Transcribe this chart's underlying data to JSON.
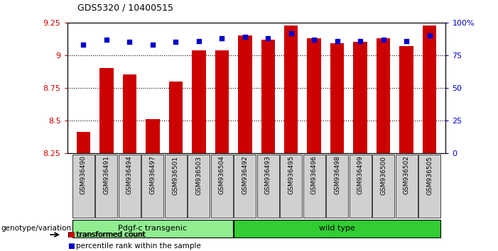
{
  "title": "GDS5320 / 10400515",
  "samples": [
    "GSM936490",
    "GSM936491",
    "GSM936494",
    "GSM936497",
    "GSM936501",
    "GSM936503",
    "GSM936504",
    "GSM936492",
    "GSM936493",
    "GSM936495",
    "GSM936496",
    "GSM936498",
    "GSM936499",
    "GSM936500",
    "GSM936502",
    "GSM936505"
  ],
  "transformed_count": [
    8.41,
    8.9,
    8.85,
    8.51,
    8.8,
    9.04,
    9.04,
    9.15,
    9.12,
    9.23,
    9.13,
    9.09,
    9.1,
    9.13,
    9.07,
    9.23
  ],
  "percentile_rank": [
    83,
    87,
    85,
    83,
    85,
    86,
    88,
    89,
    88,
    92,
    87,
    86,
    86,
    87,
    86,
    90
  ],
  "ylim_left": [
    8.25,
    9.25
  ],
  "ylim_right": [
    0,
    100
  ],
  "yticks_left": [
    8.25,
    8.5,
    8.75,
    9.0,
    9.25
  ],
  "yticks_right": [
    0,
    25,
    50,
    75,
    100
  ],
  "ytick_labels_right": [
    "0",
    "25",
    "50",
    "75",
    "100%"
  ],
  "bar_color": "#cc0000",
  "dot_color": "#0000cc",
  "bar_width": 0.6,
  "groups": [
    {
      "label": "Pdgf-c transgenic",
      "start": 0,
      "end": 6,
      "color": "#90ee90"
    },
    {
      "label": "wild type",
      "start": 7,
      "end": 15,
      "color": "#33cc33"
    }
  ],
  "group_label": "genotype/variation",
  "legend_bar": "transformed count",
  "legend_dot": "percentile rank within the sample",
  "background_color": "#ffffff",
  "tick_label_color_left": "#cc0000",
  "tick_label_color_right": "#0000cc",
  "label_bg_color": "#d0d0d0",
  "grid_yticks": [
    8.5,
    8.75,
    9.0
  ]
}
